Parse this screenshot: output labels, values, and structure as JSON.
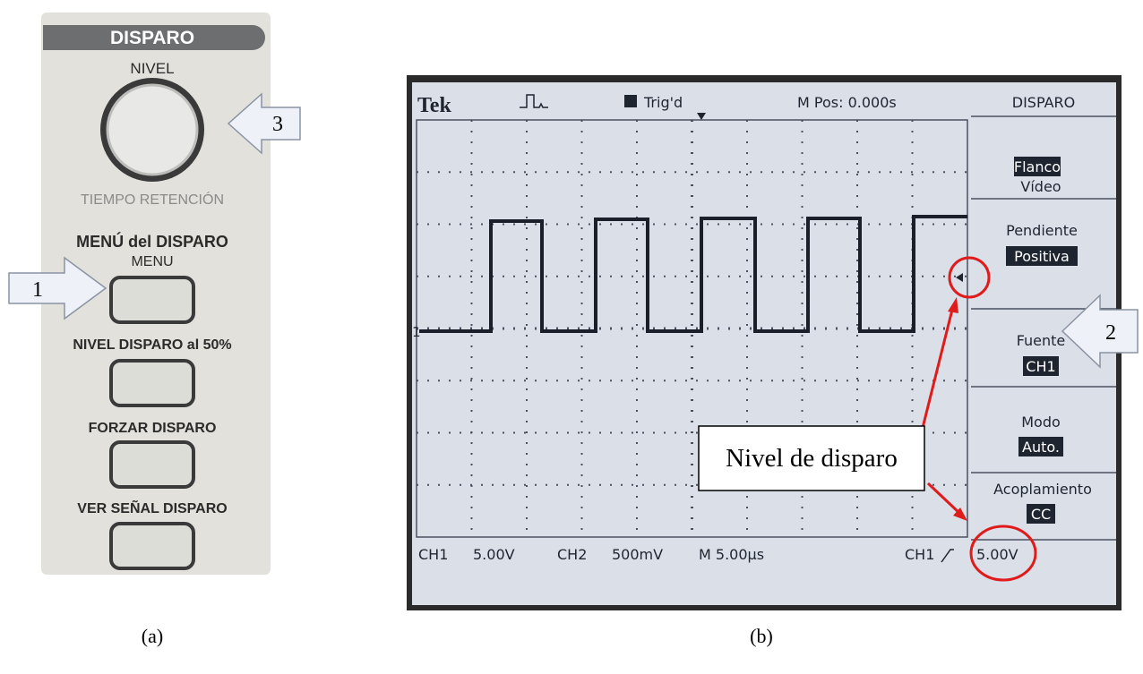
{
  "panel": {
    "header": "DISPARO",
    "knob_label": "NIVEL",
    "knob_sublabel": "TIEMPO RETENCIÓN",
    "section_title": "MENÚ del DISPARO",
    "buttons": [
      "MENU",
      "NIVEL DISPARO al 50%",
      "FORZAR DISPARO",
      "VER SEÑAL DISPARO"
    ],
    "callouts": [
      "1",
      "3"
    ],
    "caption": "(a)"
  },
  "screen": {
    "brand": "Tek",
    "status": "Trig'd",
    "position": "M Pos: 0.000s",
    "menu_title": "DISPARO",
    "menu": [
      {
        "label": "Flanco",
        "value": "Vídeo"
      },
      {
        "label": "Pendiente",
        "value": "Positiva"
      },
      {
        "label": "Fuente",
        "value": "CH1"
      },
      {
        "label": "Modo",
        "value": "Auto."
      },
      {
        "label": "Acoplamiento",
        "value": "CC"
      }
    ],
    "channel_marker": "1",
    "footer": [
      "CH1",
      "5.00V",
      "CH2",
      "500mV",
      "M 5.00µs",
      "CH1",
      "5.00V"
    ],
    "annotation": "Nivel de disparo",
    "callout": "2",
    "caption": "(b)"
  }
}
